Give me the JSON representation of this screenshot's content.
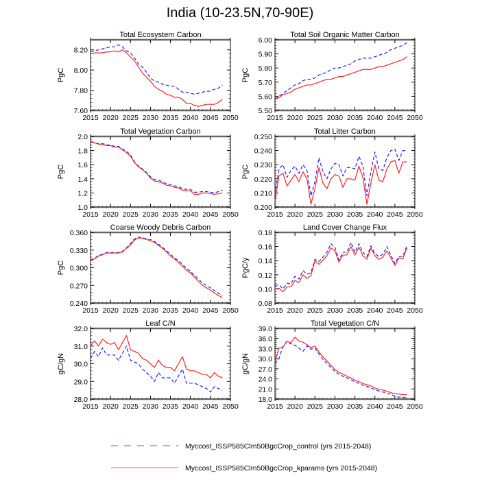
{
  "title": "India (10-23.5N,70-90E)",
  "colors": {
    "control": "#1f1fff",
    "kparams": "#ff1f1f",
    "frame": "#666666",
    "axis": "#000000"
  },
  "legend": [
    {
      "name": "Myccost_ISSP585Clm50BgcCrop_control (yrs 2015-2048)",
      "style": "dashed",
      "color": "#1f1fff"
    },
    {
      "name": "Myccost_ISSP585Clm50BgcCrop_kparams (yrs 2015-2048)",
      "style": "solid",
      "color": "#ff1f1f"
    }
  ],
  "chart_data": [
    {
      "type": "line",
      "title": "Total Ecosystem Carbon",
      "xlabel": "",
      "ylabel": "PgC",
      "xlim": [
        2015,
        2050
      ],
      "ylim": [
        7.6,
        8.3
      ],
      "xticks": [
        "2015",
        "2020",
        "2025",
        "2030",
        "2035",
        "2040",
        "2045",
        "2050"
      ],
      "yticks": [
        "7.60",
        "7.80",
        "8.00",
        "8.20"
      ],
      "ytick_values": [
        7.6,
        7.8,
        8.0,
        8.2
      ],
      "x_start": 2015,
      "series": [
        {
          "name": "control",
          "values": [
            8.18,
            8.19,
            8.2,
            8.21,
            8.22,
            8.23,
            8.23,
            8.25,
            8.23,
            8.19,
            8.17,
            8.12,
            8.06,
            8.03,
            7.98,
            7.92,
            7.89,
            7.88,
            7.86,
            7.85,
            7.84,
            7.84,
            7.81,
            7.78,
            7.78,
            7.77,
            7.76,
            7.77,
            7.78,
            7.79,
            7.79,
            7.81,
            7.82,
            7.85
          ]
        },
        {
          "name": "kparams",
          "values": [
            8.16,
            8.17,
            8.17,
            8.17,
            8.18,
            8.18,
            8.19,
            8.18,
            8.2,
            8.17,
            8.13,
            8.09,
            8.03,
            7.97,
            7.93,
            7.89,
            7.84,
            7.81,
            7.79,
            7.76,
            7.75,
            7.73,
            7.73,
            7.71,
            7.67,
            7.67,
            7.65,
            7.64,
            7.65,
            7.66,
            7.66,
            7.66,
            7.68,
            7.71
          ]
        }
      ]
    },
    {
      "type": "line",
      "title": "Total Soil Organic Matter Carbon",
      "xlabel": "",
      "ylabel": "PgC",
      "xlim": [
        2015,
        2050
      ],
      "ylim": [
        5.5,
        6.0
      ],
      "xticks": [
        "2015",
        "2020",
        "2025",
        "2030",
        "2035",
        "2040",
        "2045",
        "2050"
      ],
      "yticks": [
        "5.50",
        "5.60",
        "5.70",
        "5.80",
        "5.90",
        "6.00"
      ],
      "ytick_values": [
        5.5,
        5.6,
        5.7,
        5.8,
        5.9,
        6.0
      ],
      "x_start": 2015,
      "series": [
        {
          "name": "control",
          "values": [
            5.58,
            5.6,
            5.62,
            5.64,
            5.66,
            5.68,
            5.69,
            5.71,
            5.72,
            5.72,
            5.73,
            5.75,
            5.76,
            5.77,
            5.79,
            5.8,
            5.8,
            5.81,
            5.82,
            5.83,
            5.85,
            5.86,
            5.87,
            5.87,
            5.87,
            5.88,
            5.89,
            5.9,
            5.91,
            5.93,
            5.94,
            5.95,
            5.96,
            5.98
          ]
        },
        {
          "name": "kparams",
          "values": [
            5.58,
            5.59,
            5.61,
            5.62,
            5.63,
            5.65,
            5.66,
            5.67,
            5.68,
            5.68,
            5.69,
            5.7,
            5.71,
            5.72,
            5.72,
            5.73,
            5.74,
            5.74,
            5.75,
            5.76,
            5.77,
            5.78,
            5.79,
            5.79,
            5.79,
            5.8,
            5.81,
            5.81,
            5.82,
            5.83,
            5.84,
            5.85,
            5.86,
            5.88
          ]
        }
      ]
    },
    {
      "type": "line",
      "title": "Total Vegetation Carbon",
      "xlabel": "",
      "ylabel": "PgC",
      "xlim": [
        2015,
        2050
      ],
      "ylim": [
        1.0,
        2.0
      ],
      "xticks": [
        "2015",
        "2020",
        "2025",
        "2030",
        "2035",
        "2040",
        "2045",
        "2050"
      ],
      "yticks": [
        "1.0",
        "1.2",
        "1.4",
        "1.6",
        "1.8",
        "2.0"
      ],
      "ytick_values": [
        1.0,
        1.2,
        1.4,
        1.6,
        1.8,
        2.0
      ],
      "x_start": 2015,
      "series": [
        {
          "name": "control",
          "values": [
            1.93,
            1.91,
            1.9,
            1.9,
            1.88,
            1.88,
            1.86,
            1.86,
            1.82,
            1.79,
            1.74,
            1.64,
            1.58,
            1.54,
            1.49,
            1.43,
            1.39,
            1.38,
            1.36,
            1.33,
            1.32,
            1.3,
            1.29,
            1.26,
            1.25,
            1.25,
            1.21,
            1.21,
            1.22,
            1.22,
            1.21,
            1.2,
            1.22,
            1.24
          ]
        },
        {
          "name": "kparams",
          "values": [
            1.92,
            1.91,
            1.89,
            1.89,
            1.87,
            1.87,
            1.85,
            1.85,
            1.81,
            1.77,
            1.72,
            1.63,
            1.57,
            1.53,
            1.48,
            1.41,
            1.37,
            1.36,
            1.34,
            1.31,
            1.3,
            1.28,
            1.27,
            1.24,
            1.23,
            1.23,
            1.18,
            1.18,
            1.2,
            1.2,
            1.19,
            1.18,
            1.19,
            1.2
          ]
        }
      ]
    },
    {
      "type": "line",
      "title": "Total Litter Carbon",
      "xlabel": "",
      "ylabel": "PgC",
      "xlim": [
        2015,
        2050
      ],
      "ylim": [
        0.2,
        0.25
      ],
      "xticks": [
        "2015",
        "2020",
        "2025",
        "2030",
        "2035",
        "2040",
        "2045",
        "2050"
      ],
      "yticks": [
        "0.200",
        "0.210",
        "0.220",
        "0.230",
        "0.240",
        "0.250"
      ],
      "ytick_values": [
        0.2,
        0.21,
        0.22,
        0.23,
        0.24,
        0.25
      ],
      "x_start": 2015,
      "series": [
        {
          "name": "control",
          "values": [
            0.209,
            0.227,
            0.23,
            0.221,
            0.226,
            0.229,
            0.224,
            0.23,
            0.226,
            0.208,
            0.218,
            0.235,
            0.225,
            0.22,
            0.227,
            0.231,
            0.23,
            0.222,
            0.228,
            0.228,
            0.227,
            0.236,
            0.229,
            0.208,
            0.225,
            0.239,
            0.227,
            0.226,
            0.235,
            0.24,
            0.241,
            0.233,
            0.24,
            0.24
          ]
        },
        {
          "name": "kparams",
          "values": [
            0.204,
            0.222,
            0.224,
            0.215,
            0.219,
            0.223,
            0.218,
            0.225,
            0.22,
            0.202,
            0.213,
            0.228,
            0.217,
            0.213,
            0.22,
            0.223,
            0.222,
            0.214,
            0.22,
            0.22,
            0.219,
            0.229,
            0.221,
            0.202,
            0.217,
            0.23,
            0.219,
            0.218,
            0.227,
            0.232,
            0.233,
            0.224,
            0.232,
            0.232
          ]
        }
      ]
    },
    {
      "type": "line",
      "title": "Coarse Woody Debris Carbon",
      "xlabel": "",
      "ylabel": "PgC",
      "xlim": [
        2015,
        2050
      ],
      "ylim": [
        0.24,
        0.36
      ],
      "xticks": [
        "2015",
        "2020",
        "2025",
        "2030",
        "2035",
        "2040",
        "2045",
        "2050"
      ],
      "yticks": [
        "0.240",
        "0.270",
        "0.300",
        "0.330",
        "0.360"
      ],
      "ytick_values": [
        0.24,
        0.27,
        0.3,
        0.33,
        0.36
      ],
      "x_start": 2015,
      "series": [
        {
          "name": "control",
          "values": [
            0.313,
            0.316,
            0.321,
            0.323,
            0.326,
            0.326,
            0.326,
            0.326,
            0.328,
            0.334,
            0.341,
            0.349,
            0.352,
            0.351,
            0.349,
            0.348,
            0.345,
            0.34,
            0.335,
            0.329,
            0.323,
            0.317,
            0.312,
            0.306,
            0.299,
            0.294,
            0.287,
            0.281,
            0.274,
            0.27,
            0.266,
            0.261,
            0.257,
            0.252
          ]
        },
        {
          "name": "kparams",
          "values": [
            0.312,
            0.315,
            0.32,
            0.322,
            0.325,
            0.325,
            0.325,
            0.325,
            0.327,
            0.333,
            0.339,
            0.347,
            0.351,
            0.35,
            0.348,
            0.346,
            0.343,
            0.338,
            0.333,
            0.327,
            0.32,
            0.315,
            0.309,
            0.303,
            0.296,
            0.291,
            0.284,
            0.277,
            0.27,
            0.266,
            0.262,
            0.257,
            0.253,
            0.249
          ]
        }
      ]
    },
    {
      "type": "line",
      "title": "Land Cover Change Flux",
      "xlabel": "",
      "ylabel": "PgC/y",
      "xlim": [
        2015,
        2050
      ],
      "ylim": [
        0.08,
        0.18
      ],
      "xticks": [
        "2015",
        "2020",
        "2025",
        "2030",
        "2035",
        "2040",
        "2045",
        "2050"
      ],
      "yticks": [
        "0.08",
        "0.10",
        "0.12",
        "0.14",
        "0.16",
        "0.18"
      ],
      "ytick_values": [
        0.08,
        0.1,
        0.12,
        0.14,
        0.16,
        0.18
      ],
      "x_start": 2015,
      "series": [
        {
          "name": "control",
          "values": [
            0.105,
            0.106,
            0.1,
            0.108,
            0.107,
            0.118,
            0.114,
            0.126,
            0.121,
            0.123,
            0.142,
            0.139,
            0.145,
            0.152,
            0.164,
            0.159,
            0.141,
            0.152,
            0.152,
            0.166,
            0.152,
            0.164,
            0.152,
            0.146,
            0.161,
            0.15,
            0.146,
            0.149,
            0.16,
            0.148,
            0.136,
            0.146,
            0.146,
            0.161
          ]
        },
        {
          "name": "kparams",
          "values": [
            0.1,
            0.101,
            0.096,
            0.103,
            0.103,
            0.112,
            0.109,
            0.12,
            0.115,
            0.119,
            0.14,
            0.135,
            0.141,
            0.147,
            0.158,
            0.154,
            0.138,
            0.148,
            0.148,
            0.16,
            0.148,
            0.159,
            0.147,
            0.142,
            0.158,
            0.147,
            0.142,
            0.145,
            0.154,
            0.144,
            0.133,
            0.144,
            0.143,
            0.158
          ]
        }
      ]
    },
    {
      "type": "line",
      "title": "Leaf C/N",
      "xlabel": "",
      "ylabel": "gC/gN",
      "xlim": [
        2015,
        2050
      ],
      "ylim": [
        28.0,
        32.0
      ],
      "xticks": [
        "2015",
        "2020",
        "2025",
        "2030",
        "2035",
        "2040",
        "2045",
        "2050"
      ],
      "yticks": [
        "28.0",
        "29.0",
        "30.0",
        "31.0",
        "32.0"
      ],
      "ytick_values": [
        28,
        29,
        30,
        31,
        32
      ],
      "x_start": 2015,
      "series": [
        {
          "name": "control",
          "values": [
            30.3,
            30.7,
            30.4,
            30.9,
            30.5,
            30.5,
            30.5,
            30.2,
            30.6,
            31.0,
            30.2,
            30.1,
            30.0,
            29.7,
            29.5,
            29.3,
            29.0,
            29.5,
            29.2,
            29.2,
            29.2,
            28.9,
            29.3,
            29.7,
            28.9,
            28.9,
            28.9,
            28.8,
            28.7,
            28.6,
            28.4,
            28.7,
            28.6,
            28.5
          ]
        },
        {
          "name": "kparams",
          "values": [
            31.0,
            31.3,
            31.0,
            31.4,
            31.2,
            31.1,
            31.2,
            30.8,
            31.2,
            31.6,
            30.8,
            30.7,
            30.6,
            30.3,
            30.2,
            30.0,
            29.8,
            30.2,
            29.9,
            29.8,
            29.8,
            29.6,
            30.0,
            30.4,
            29.7,
            29.6,
            29.6,
            29.5,
            29.4,
            29.4,
            29.2,
            29.5,
            29.3,
            29.2
          ]
        }
      ]
    },
    {
      "type": "line",
      "title": "Total Vegetation C/N",
      "xlabel": "",
      "ylabel": "gC/gN",
      "xlim": [
        2015,
        2050
      ],
      "ylim": [
        18.0,
        39.0
      ],
      "xticks": [
        "2015",
        "2020",
        "2025",
        "2030",
        "2035",
        "2040",
        "2045",
        "2050"
      ],
      "yticks": [
        "18.0",
        "21.0",
        "24.0",
        "27.0",
        "30.0",
        "33.0",
        "36.0",
        "39.0"
      ],
      "ytick_values": [
        18,
        21,
        24,
        27,
        30,
        33,
        36,
        39
      ],
      "x_start": 2015,
      "series": [
        {
          "name": "control",
          "values": [
            28.5,
            30.0,
            33.8,
            35.0,
            34.4,
            34.0,
            33.2,
            32.2,
            33.8,
            32.8,
            33.2,
            31.4,
            29.8,
            28.6,
            27.4,
            26.2,
            25.4,
            24.8,
            24.3,
            23.8,
            23.1,
            22.7,
            22.1,
            21.8,
            21.3,
            20.8,
            20.4,
            20.1,
            19.7,
            19.4,
            18.8,
            18.6,
            18.5,
            18.4
          ]
        },
        {
          "name": "kparams",
          "values": [
            29.0,
            33.2,
            33.4,
            35.3,
            34.7,
            36.4,
            35.3,
            34.9,
            34.2,
            33.3,
            33.8,
            32.0,
            30.6,
            29.3,
            28.0,
            26.8,
            26.0,
            25.4,
            24.8,
            24.3,
            23.6,
            23.2,
            22.6,
            22.3,
            21.9,
            21.3,
            20.9,
            20.7,
            20.3,
            19.9,
            19.6,
            19.5,
            19.3,
            19.3
          ]
        }
      ]
    }
  ]
}
